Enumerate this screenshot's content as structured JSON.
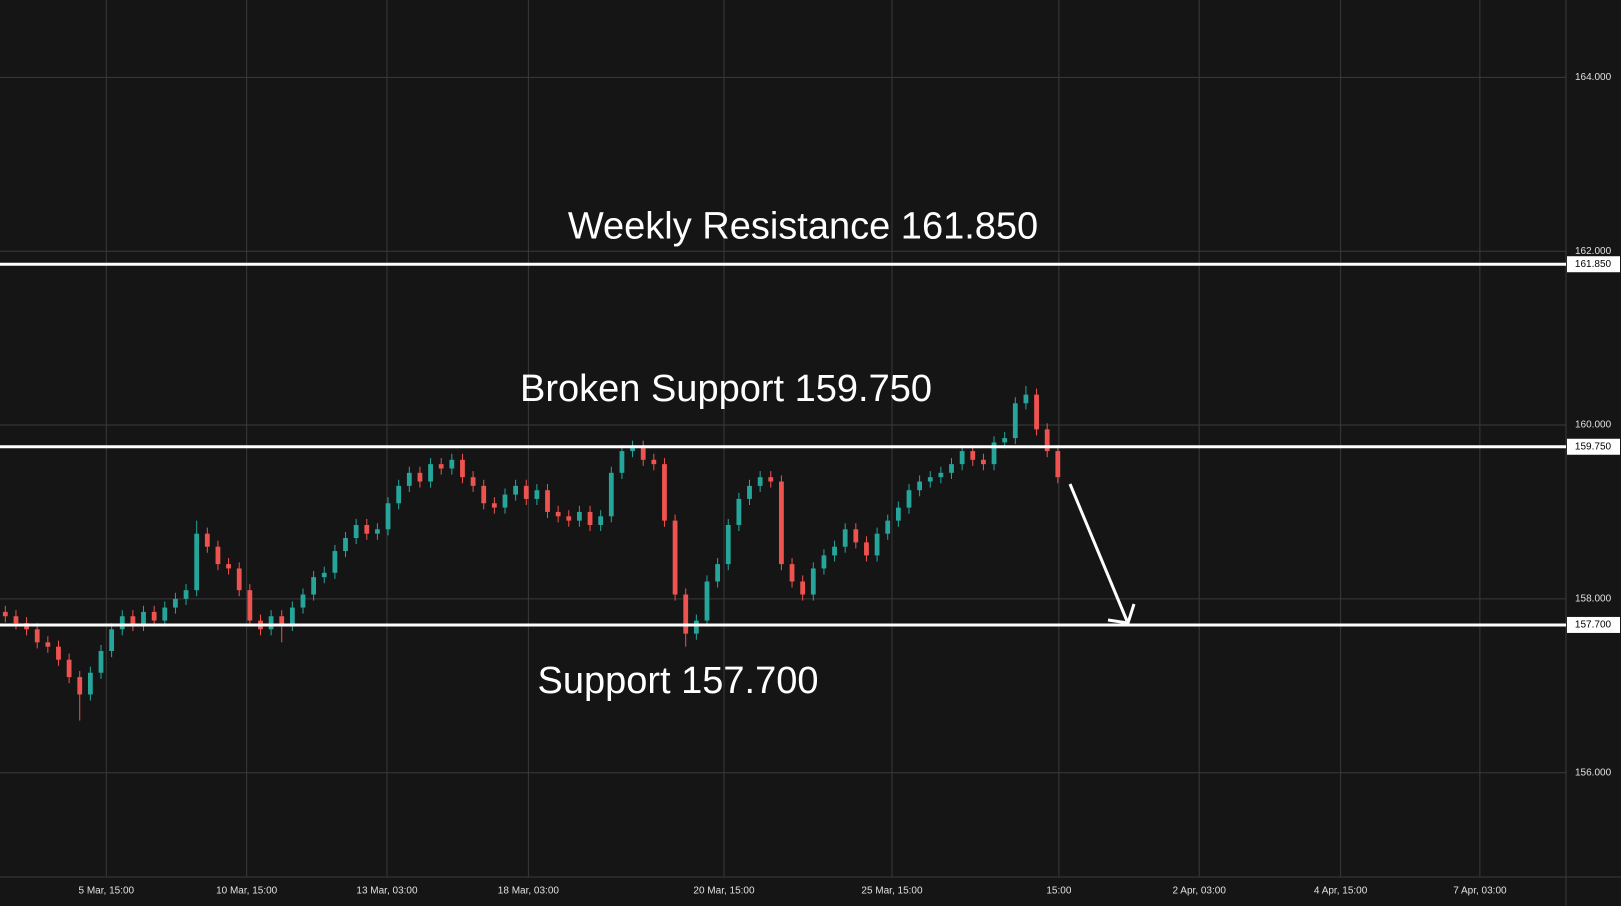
{
  "chart_data": {
    "type": "candlestick",
    "up_color": "#26a69a",
    "down_color": "#ef5350",
    "grid": true,
    "xlim": [
      -0.5,
      146.8
    ],
    "ylim": [
      154.8,
      164.89
    ],
    "yticks": [
      {
        "value": 156,
        "label": "156.000"
      },
      {
        "value": 158,
        "label": "158.000"
      },
      {
        "value": 160,
        "label": "160.000"
      },
      {
        "value": 162,
        "label": "162.000"
      },
      {
        "value": 164,
        "label": "164.000"
      }
    ],
    "xticks": [
      {
        "value": 9.5,
        "label": "5 Mar, 15:00"
      },
      {
        "value": 22.7,
        "label": "10 Mar, 15:00"
      },
      {
        "value": 35.9,
        "label": "13 Mar, 03:00"
      },
      {
        "value": 49.2,
        "label": "18 Mar, 03:00"
      },
      {
        "value": 67.6,
        "label": "20 Mar, 15:00"
      },
      {
        "value": 83.4,
        "label": "25 Mar, 15:00"
      },
      {
        "value": 99.1,
        "label": "15:00"
      },
      {
        "value": 112.3,
        "label": "2 Apr, 03:00"
      },
      {
        "value": 125.6,
        "label": "4 Apr, 15:00"
      },
      {
        "value": 138.7,
        "label": "7 Apr, 03:00"
      }
    ],
    "levels": [
      {
        "value": 161.85,
        "label": "161.850",
        "annotation": "Weekly Resistance 161.850"
      },
      {
        "value": 159.75,
        "label": "159.750",
        "annotation": "Broken Support 159.750"
      },
      {
        "value": 157.7,
        "label": "157.700",
        "annotation": "Support 157.700"
      }
    ],
    "open": [
      157.85,
      157.8,
      157.72,
      157.65,
      157.5,
      157.45,
      157.3,
      157.1,
      156.9,
      157.15,
      157.4,
      157.65,
      157.8,
      157.7,
      157.85,
      157.75,
      157.9,
      158.0,
      158.1,
      158.75,
      158.6,
      158.4,
      158.35,
      158.1,
      157.75,
      157.65,
      157.8,
      157.7,
      157.9,
      158.05,
      158.25,
      158.3,
      158.55,
      158.7,
      158.85,
      158.75,
      158.8,
      159.1,
      159.3,
      159.45,
      159.35,
      159.55,
      159.5,
      159.6,
      159.4,
      159.3,
      159.1,
      159.05,
      159.2,
      159.3,
      159.15,
      159.25,
      159.0,
      158.95,
      158.9,
      159.0,
      158.85,
      158.95,
      159.45,
      159.7,
      159.75,
      159.6,
      159.55,
      158.9,
      158.05,
      157.6,
      157.75,
      158.2,
      158.4,
      158.85,
      159.15,
      159.3,
      159.4,
      159.35,
      158.4,
      158.2,
      158.05,
      158.35,
      158.5,
      158.6,
      158.8,
      158.65,
      158.5,
      158.75,
      158.9,
      159.05,
      159.25,
      159.35,
      159.4,
      159.45,
      159.55,
      159.7,
      159.6,
      159.55,
      159.8,
      159.85,
      160.25,
      160.35,
      159.95,
      159.7
    ],
    "high": [
      157.92,
      157.87,
      157.79,
      157.72,
      157.57,
      157.52,
      157.37,
      157.17,
      157.22,
      157.47,
      157.72,
      157.87,
      157.87,
      157.92,
      157.92,
      157.97,
      158.07,
      158.17,
      158.9,
      158.82,
      158.67,
      158.47,
      158.42,
      158.17,
      157.82,
      157.87,
      157.87,
      157.97,
      158.12,
      158.32,
      158.37,
      158.62,
      158.77,
      158.92,
      158.92,
      158.87,
      159.17,
      159.37,
      159.52,
      159.52,
      159.62,
      159.62,
      159.67,
      159.67,
      159.47,
      159.37,
      159.17,
      159.27,
      159.37,
      159.37,
      159.32,
      159.32,
      159.07,
      159.02,
      159.07,
      159.07,
      159.02,
      159.52,
      159.77,
      159.82,
      159.82,
      159.67,
      159.62,
      158.97,
      158.12,
      157.82,
      158.27,
      158.47,
      158.92,
      159.22,
      159.37,
      159.47,
      159.47,
      159.42,
      158.47,
      158.27,
      158.42,
      158.57,
      158.67,
      158.87,
      158.87,
      158.72,
      158.82,
      158.97,
      159.12,
      159.32,
      159.42,
      159.47,
      159.52,
      159.62,
      159.77,
      159.77,
      159.67,
      159.87,
      159.92,
      160.32,
      160.45,
      160.42,
      160.02,
      159.77
    ],
    "low": [
      157.73,
      157.65,
      157.58,
      157.43,
      157.38,
      157.23,
      157.03,
      156.6,
      156.83,
      157.08,
      157.33,
      157.58,
      157.63,
      157.63,
      157.68,
      157.68,
      157.83,
      157.93,
      158.03,
      158.53,
      158.33,
      158.28,
      158.03,
      157.68,
      157.58,
      157.58,
      157.5,
      157.63,
      157.83,
      157.98,
      158.18,
      158.23,
      158.48,
      158.63,
      158.68,
      158.68,
      158.73,
      159.03,
      159.23,
      159.28,
      159.28,
      159.43,
      159.43,
      159.33,
      159.23,
      159.03,
      158.98,
      158.98,
      159.13,
      159.08,
      159.08,
      158.93,
      158.88,
      158.83,
      158.83,
      158.78,
      158.78,
      158.88,
      159.38,
      159.63,
      159.53,
      159.48,
      158.83,
      157.98,
      157.45,
      157.53,
      157.68,
      158.13,
      158.33,
      158.78,
      159.08,
      159.23,
      159.28,
      158.33,
      158.13,
      157.98,
      157.98,
      158.28,
      158.43,
      158.53,
      158.58,
      158.43,
      158.43,
      158.68,
      158.83,
      158.98,
      159.18,
      159.28,
      159.33,
      159.38,
      159.48,
      159.53,
      159.48,
      159.48,
      159.73,
      159.78,
      160.18,
      159.88,
      159.63,
      159.33
    ],
    "close": [
      157.8,
      157.72,
      157.65,
      157.5,
      157.45,
      157.3,
      157.1,
      156.9,
      157.15,
      157.4,
      157.65,
      157.8,
      157.7,
      157.85,
      157.75,
      157.9,
      158.0,
      158.1,
      158.75,
      158.6,
      158.4,
      158.35,
      158.1,
      157.75,
      157.65,
      157.8,
      157.7,
      157.9,
      158.05,
      158.25,
      158.3,
      158.55,
      158.7,
      158.85,
      158.75,
      158.8,
      159.1,
      159.3,
      159.45,
      159.35,
      159.55,
      159.5,
      159.6,
      159.4,
      159.3,
      159.1,
      159.05,
      159.2,
      159.3,
      159.15,
      159.25,
      159.0,
      158.95,
      158.9,
      159.0,
      158.85,
      158.95,
      159.45,
      159.7,
      159.75,
      159.6,
      159.55,
      158.9,
      158.05,
      157.6,
      157.75,
      158.2,
      158.4,
      158.85,
      159.15,
      159.3,
      159.4,
      159.35,
      158.4,
      158.2,
      158.05,
      158.35,
      158.5,
      158.6,
      158.8,
      158.65,
      158.5,
      158.75,
      158.9,
      159.05,
      159.25,
      159.35,
      159.4,
      159.45,
      159.55,
      159.7,
      159.6,
      159.55,
      159.8,
      159.85,
      160.25,
      160.35,
      159.95,
      159.7,
      159.4
    ]
  }
}
